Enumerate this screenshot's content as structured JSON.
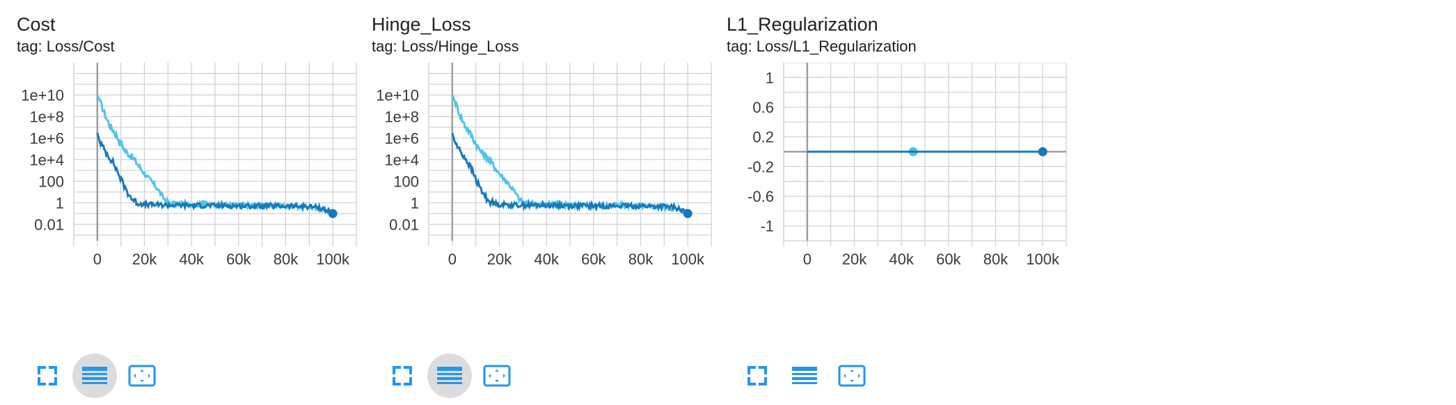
{
  "cards": [
    {
      "title": "Cost",
      "tag": "tag: Loss/Cost"
    },
    {
      "title": "Hinge_Loss",
      "tag": "tag: Loss/Hinge_Loss"
    },
    {
      "title": "L1_Regularization",
      "tag": "tag: Loss/L1_Regularization"
    }
  ],
  "toolbar_icons": [
    "fullscreen-icon",
    "toggle-log-scale-icon",
    "fit-domain-icon"
  ],
  "colors": {
    "series_light": "#4fc3e8",
    "series_dark": "#1679be",
    "grid": "#cfcfcf",
    "zero_axis": "#9e9e9e",
    "button_active_bg": "#dcdcdc",
    "icon": "#2196f3"
  },
  "chart_data": [
    {
      "type": "line",
      "title": "Cost",
      "y_scale": "log",
      "xlim": [
        -10000,
        110000
      ],
      "ylim": [
        0.0003,
        10000000000000
      ],
      "x_ticks": [
        "0",
        "20k",
        "40k",
        "60k",
        "80k",
        "100k"
      ],
      "x_tick_values": [
        0,
        20000,
        40000,
        60000,
        80000,
        100000
      ],
      "y_ticks": [
        "1e+10",
        "1e+8",
        "1e+6",
        "1e+4",
        "100",
        "1",
        "0.01"
      ],
      "y_tick_values": [
        10000000000,
        100000000,
        1000000,
        10000,
        100,
        1,
        0.01
      ],
      "series": [
        {
          "color": "#4fc3e8",
          "marker_x": 45000,
          "points": [
            [
              0,
              10000000000
            ],
            [
              1000,
              3000000000
            ],
            [
              3000,
              200000000
            ],
            [
              5000,
              20000000
            ],
            [
              8000,
              2000000
            ],
            [
              10000,
              300000
            ],
            [
              12000,
              60000
            ],
            [
              15000,
              15000
            ],
            [
              18000,
              2000
            ],
            [
              20000,
              500
            ],
            [
              23000,
              100
            ],
            [
              26000,
              15
            ],
            [
              28000,
              3
            ],
            [
              30000,
              1
            ],
            [
              35000,
              0.8
            ],
            [
              40000,
              0.7
            ],
            [
              50000,
              0.65
            ],
            [
              60000,
              0.6
            ],
            [
              70000,
              0.55
            ],
            [
              80000,
              0.5
            ],
            [
              90000,
              0.4
            ],
            [
              100000,
              0.15
            ]
          ]
        },
        {
          "color": "#1679be",
          "marker_x": 100000,
          "points": [
            [
              0,
              3000000
            ],
            [
              1000,
              500000
            ],
            [
              3000,
              80000
            ],
            [
              5000,
              20000
            ],
            [
              7000,
              4000
            ],
            [
              9000,
              500
            ],
            [
              11000,
              50
            ],
            [
              13000,
              8
            ],
            [
              15000,
              2
            ],
            [
              17000,
              1
            ],
            [
              20000,
              0.7
            ],
            [
              30000,
              0.6
            ],
            [
              40000,
              0.6
            ],
            [
              50000,
              0.55
            ],
            [
              60000,
              0.5
            ],
            [
              70000,
              0.5
            ],
            [
              80000,
              0.5
            ],
            [
              90000,
              0.45
            ],
            [
              95000,
              0.35
            ],
            [
              100000,
              0.1
            ]
          ]
        }
      ]
    },
    {
      "type": "line",
      "title": "Hinge_Loss",
      "y_scale": "log",
      "xlim": [
        -10000,
        110000
      ],
      "ylim": [
        0.0003,
        10000000000000
      ],
      "x_ticks": [
        "0",
        "20k",
        "40k",
        "60k",
        "80k",
        "100k"
      ],
      "x_tick_values": [
        0,
        20000,
        40000,
        60000,
        80000,
        100000
      ],
      "y_ticks": [
        "1e+10",
        "1e+8",
        "1e+6",
        "1e+4",
        "100",
        "1",
        "0.01"
      ],
      "y_tick_values": [
        10000000000,
        100000000,
        1000000,
        10000,
        100,
        1,
        0.01
      ],
      "series": [
        {
          "color": "#4fc3e8",
          "marker_x": 45000,
          "points": [
            [
              0,
              10000000000
            ],
            [
              1000,
              3000000000
            ],
            [
              3000,
              200000000
            ],
            [
              5000,
              20000000
            ],
            [
              8000,
              2000000
            ],
            [
              10000,
              300000
            ],
            [
              12000,
              60000
            ],
            [
              15000,
              15000
            ],
            [
              18000,
              2000
            ],
            [
              20000,
              500
            ],
            [
              23000,
              100
            ],
            [
              26000,
              15
            ],
            [
              28000,
              3
            ],
            [
              30000,
              1
            ],
            [
              35000,
              0.8
            ],
            [
              40000,
              0.7
            ],
            [
              50000,
              0.65
            ],
            [
              60000,
              0.6
            ],
            [
              70000,
              0.55
            ],
            [
              80000,
              0.5
            ],
            [
              90000,
              0.4
            ],
            [
              100000,
              0.15
            ]
          ]
        },
        {
          "color": "#1679be",
          "marker_x": 100000,
          "points": [
            [
              0,
              3000000
            ],
            [
              1000,
              500000
            ],
            [
              3000,
              80000
            ],
            [
              5000,
              20000
            ],
            [
              7000,
              4000
            ],
            [
              9000,
              500
            ],
            [
              11000,
              50
            ],
            [
              13000,
              8
            ],
            [
              15000,
              2
            ],
            [
              17000,
              1
            ],
            [
              20000,
              0.7
            ],
            [
              30000,
              0.6
            ],
            [
              40000,
              0.6
            ],
            [
              50000,
              0.55
            ],
            [
              60000,
              0.5
            ],
            [
              70000,
              0.5
            ],
            [
              80000,
              0.5
            ],
            [
              90000,
              0.45
            ],
            [
              95000,
              0.35
            ],
            [
              100000,
              0.1
            ]
          ]
        }
      ]
    },
    {
      "type": "line",
      "title": "L1_Regularization",
      "y_scale": "linear",
      "xlim": [
        -10000,
        110000
      ],
      "ylim": [
        -1.2,
        1.2
      ],
      "x_ticks": [
        "0",
        "20k",
        "40k",
        "60k",
        "80k",
        "100k"
      ],
      "x_tick_values": [
        0,
        20000,
        40000,
        60000,
        80000,
        100000
      ],
      "y_ticks": [
        "1",
        "0.6",
        "0.2",
        "-0.2",
        "-0.6",
        "-1"
      ],
      "y_tick_values": [
        1,
        0.6,
        0.2,
        -0.2,
        -0.6,
        -1
      ],
      "series": [
        {
          "color": "#4fc3e8",
          "marker_x": 45000,
          "points": [
            [
              0,
              0
            ],
            [
              100000,
              0
            ]
          ]
        },
        {
          "color": "#1679be",
          "marker_x": 100000,
          "points": [
            [
              0,
              0
            ],
            [
              100000,
              0
            ]
          ]
        }
      ]
    }
  ]
}
